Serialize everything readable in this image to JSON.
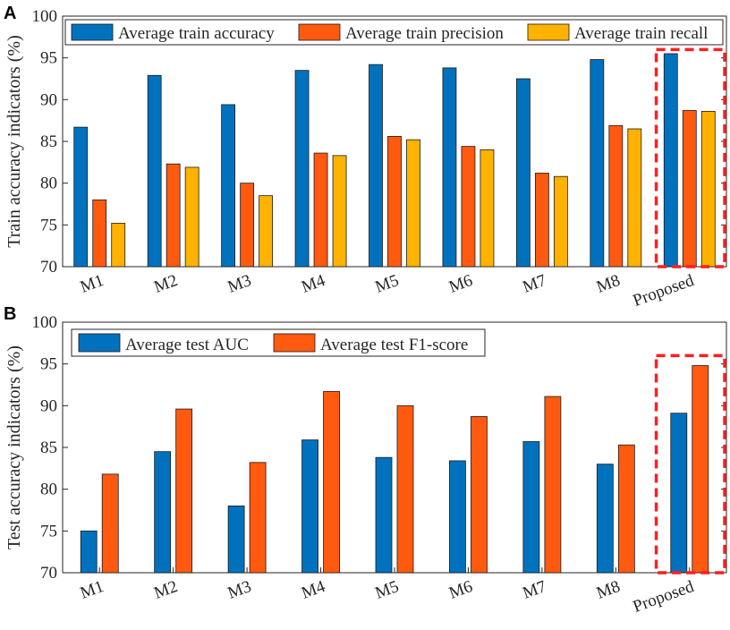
{
  "chart_data": [
    {
      "panel_label": "A",
      "type": "bar",
      "ylabel": "Train accuracy indicators (%)",
      "ylim": [
        70,
        100
      ],
      "yticks": [
        70,
        75,
        80,
        85,
        90,
        95,
        100
      ],
      "categories": [
        "M1",
        "M2",
        "M3",
        "M4",
        "M5",
        "M6",
        "M7",
        "M8",
        "Proposed"
      ],
      "series": [
        {
          "name": "Average train accuracy",
          "color": "#0072BD",
          "values": [
            86.7,
            92.9,
            89.4,
            93.5,
            94.2,
            93.8,
            92.5,
            94.8,
            95.5
          ]
        },
        {
          "name": "Average train precision",
          "color": "#FF5A10",
          "values": [
            78.0,
            82.3,
            80.0,
            83.6,
            85.6,
            84.4,
            81.2,
            86.9,
            88.7
          ]
        },
        {
          "name": "Average train recall",
          "color": "#FFB300",
          "values": [
            75.2,
            81.9,
            78.5,
            83.3,
            85.2,
            84.0,
            80.8,
            86.5,
            88.6
          ]
        }
      ],
      "highlight_category": "Proposed",
      "legend_position": "top"
    },
    {
      "panel_label": "B",
      "type": "bar",
      "ylabel": "Test accuracy indicators (%)",
      "ylim": [
        70,
        100
      ],
      "yticks": [
        70,
        75,
        80,
        85,
        90,
        95,
        100
      ],
      "categories": [
        "M1",
        "M2",
        "M3",
        "M4",
        "M5",
        "M6",
        "M7",
        "M8",
        "Proposed"
      ],
      "series": [
        {
          "name": "Average test AUC",
          "color": "#0072BD",
          "values": [
            75.0,
            84.5,
            78.0,
            85.9,
            83.8,
            83.4,
            85.7,
            83.0,
            89.1
          ]
        },
        {
          "name": "Average test F1-score",
          "color": "#FF5A10",
          "values": [
            81.8,
            89.6,
            83.2,
            91.7,
            90.0,
            88.7,
            91.1,
            85.3,
            94.8
          ]
        }
      ],
      "highlight_category": "Proposed",
      "legend_position": "top-left"
    }
  ]
}
